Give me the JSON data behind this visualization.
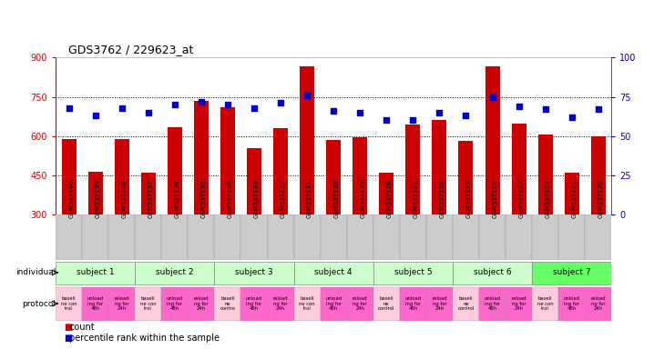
{
  "title": "GDS3762 / 229623_at",
  "samples": [
    "GSM537140",
    "GSM537139",
    "GSM537138",
    "GSM537137",
    "GSM537136",
    "GSM537135",
    "GSM537134",
    "GSM537133",
    "GSM537132",
    "GSM537131",
    "GSM537130",
    "GSM537129",
    "GSM537128",
    "GSM537127",
    "GSM537126",
    "GSM537125",
    "GSM537124",
    "GSM537123",
    "GSM537122",
    "GSM537121",
    "GSM537120"
  ],
  "counts": [
    590,
    465,
    590,
    462,
    635,
    735,
    710,
    555,
    630,
    865,
    585,
    595,
    462,
    645,
    660,
    582,
    865,
    648,
    605,
    462,
    600
  ],
  "percentiles": [
    68,
    63,
    68,
    65,
    70,
    72,
    70,
    68,
    71,
    76,
    66,
    65,
    60,
    60,
    65,
    63,
    75,
    69,
    67,
    62,
    67
  ],
  "ylim_left": [
    300,
    900
  ],
  "ylim_right": [
    0,
    100
  ],
  "yticks_left": [
    300,
    450,
    600,
    750,
    900
  ],
  "yticks_right": [
    0,
    25,
    50,
    75,
    100
  ],
  "hlines": [
    450,
    600,
    750
  ],
  "bar_color": "#cc0000",
  "dot_color": "#0000cc",
  "subjects": [
    {
      "label": "subject 1",
      "start": 0,
      "end": 3
    },
    {
      "label": "subject 2",
      "start": 3,
      "end": 6
    },
    {
      "label": "subject 3",
      "start": 6,
      "end": 9
    },
    {
      "label": "subject 4",
      "start": 9,
      "end": 12
    },
    {
      "label": "subject 5",
      "start": 12,
      "end": 15
    },
    {
      "label": "subject 6",
      "start": 15,
      "end": 18
    },
    {
      "label": "subject 7",
      "start": 18,
      "end": 21
    }
  ],
  "subject_colors": [
    "#ccffcc",
    "#ccffcc",
    "#ccffcc",
    "#ccffcc",
    "#ccffcc",
    "#ccffcc",
    "#66ff66"
  ],
  "protocol_colors_cycle": [
    "#ffccdd",
    "#ff66cc",
    "#ff66cc"
  ],
  "protocol_labels": [
    "baseli\nne con\ntrol",
    "unload\ning for\n48h",
    "reload\nng for\n24h",
    "baseli\nne con\ntrol",
    "unload\ning for\n48h",
    "reload\nng for\n24h",
    "baseli\nne\ncontro",
    "unload\ning for\n48h",
    "reload\nng for\n24h",
    "baseli\nne con\ntrol",
    "unload\ning for\n48h",
    "reload\nng for\n24h",
    "baseli\nne\ncontrol",
    "unload\ning for\n48h",
    "reload\nng for\n24h",
    "baseli\nne\ncontrol",
    "unload\ning for\n48h",
    "reload\nng for\n24h",
    "baseli\nne con\ntrol",
    "unload\ning for\n48h",
    "reload\nng for\n24h"
  ],
  "bg_color": "#ffffff",
  "tick_label_bg": "#cccccc",
  "axis_left_color": "#cc0000",
  "axis_right_color": "#0000cc"
}
